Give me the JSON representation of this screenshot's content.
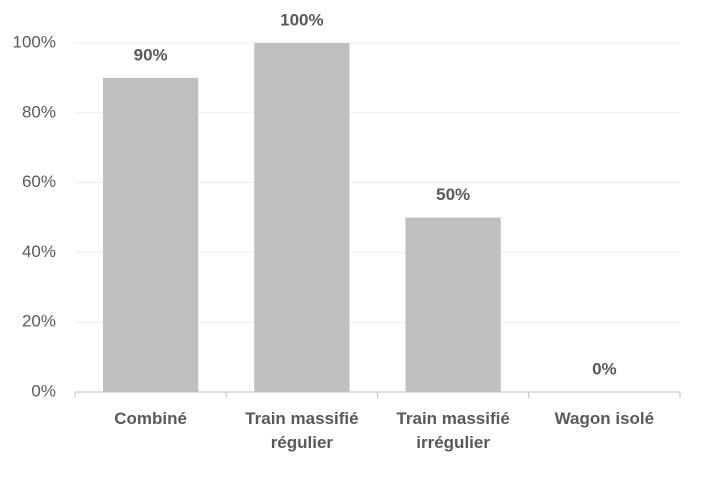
{
  "chart_data": {
    "type": "bar",
    "categories": [
      "Combiné",
      "Train massifié régulier",
      "Train massifié irrégulier",
      "Wagon isolé"
    ],
    "values": [
      90,
      100,
      50,
      0
    ],
    "value_labels": [
      "90%",
      "100%",
      "50%",
      "0%"
    ],
    "color": "#bfbfbf",
    "ylim": [
      0,
      100
    ],
    "yticks": [
      {
        "value": 0,
        "label": "0%"
      },
      {
        "value": 20,
        "label": "20%"
      },
      {
        "value": 40,
        "label": "40%"
      },
      {
        "value": 60,
        "label": "60%"
      },
      {
        "value": 80,
        "label": "80%"
      },
      {
        "value": 100,
        "label": "100%"
      }
    ],
    "grid": true
  }
}
